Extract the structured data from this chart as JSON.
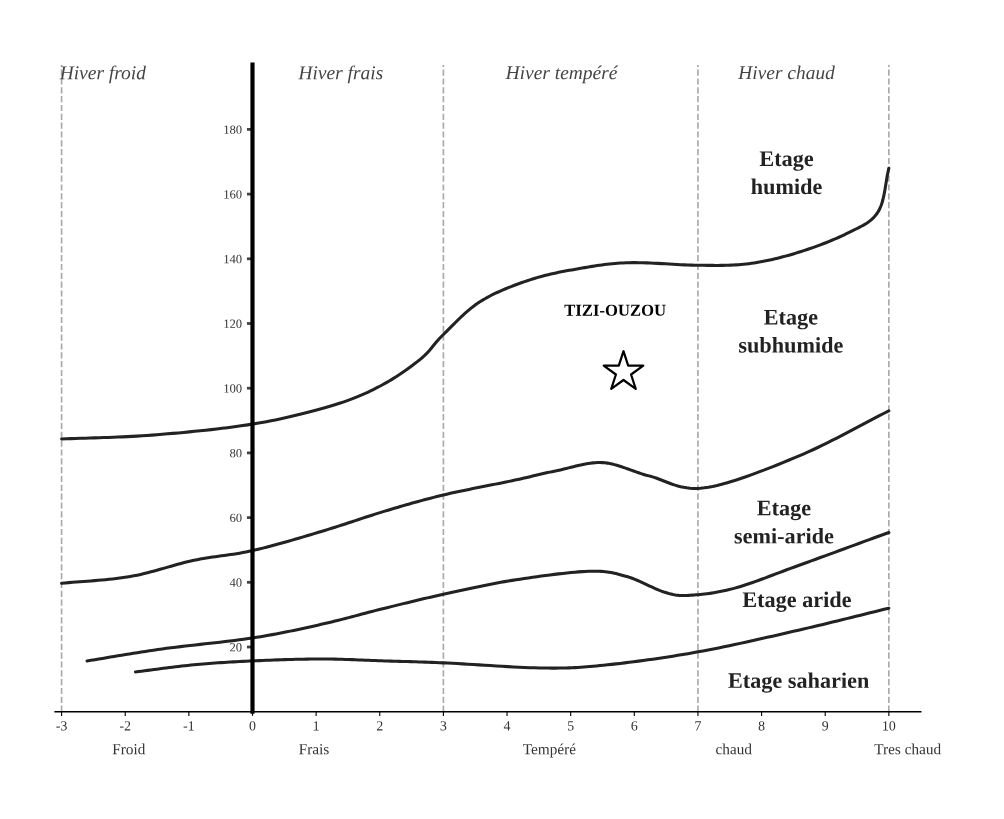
{
  "chart_data": {
    "type": "line",
    "xlim": [
      -3.1,
      10.5
    ],
    "ylim": [
      0,
      200
    ],
    "xticks": [
      -3,
      -2,
      -1,
      0,
      1,
      2,
      3,
      4,
      5,
      6,
      7,
      8,
      9,
      10
    ],
    "yticks": [
      20,
      40,
      60,
      80,
      100,
      120,
      140,
      160,
      180
    ],
    "grid": false,
    "legend": false,
    "line_style": "solid",
    "series": [
      {
        "color": "#222222",
        "x": [
          -3,
          -1.58,
          0,
          1.23,
          2.0,
          2.64,
          3,
          3.58,
          4.36,
          5.14,
          5.92,
          7,
          7.8,
          8.58,
          9.36,
          9.83,
          10
        ],
        "values": [
          84.3,
          85.5,
          88.9,
          94.5,
          100.6,
          109,
          116.6,
          126.8,
          133.5,
          137,
          138.8,
          138,
          138.5,
          142,
          148,
          154.5,
          168
        ]
      },
      {
        "color": "#222222",
        "x": [
          -3,
          -1.92,
          -0.92,
          0,
          1.08,
          2.08,
          3,
          4.08,
          4.78,
          5.5,
          6.23,
          7.1,
          8.58,
          10
        ],
        "values": [
          39.7,
          41.8,
          46.8,
          49.8,
          55.7,
          62,
          67,
          71.4,
          74.5,
          77,
          72.9,
          69.2,
          79,
          93
        ]
      },
      {
        "color": "#222222",
        "x": [
          -2.6,
          -1.42,
          0,
          1.08,
          2.08,
          3,
          4.08,
          5.28,
          5.88,
          6.48,
          6.88,
          7.58,
          8.58,
          10
        ],
        "values": [
          15.7,
          19.4,
          22.8,
          27,
          32,
          36.3,
          40.6,
          43.4,
          41.8,
          36.9,
          36,
          38.2,
          45.2,
          55.4
        ]
      },
      {
        "color": "#222222",
        "x": [
          -1.84,
          -0.92,
          0,
          1.08,
          2.08,
          3,
          4.58,
          5.58,
          7,
          8.58,
          10
        ],
        "values": [
          12.3,
          14.5,
          15.7,
          16.3,
          15.7,
          15.1,
          13.5,
          14.5,
          18.5,
          25.2,
          32
        ]
      },
      {
        "type": "scatter",
        "name": "TIZI-OUZOU",
        "color": "#000000",
        "marker": "star",
        "x": [
          5.83
        ],
        "values": [
          105
        ]
      }
    ],
    "ref_lines": [
      {
        "axis": "x",
        "value": -3,
        "color": "#aaaaaa",
        "line_style": "dashed"
      },
      {
        "axis": "x",
        "value": 3,
        "color": "#aaaaaa",
        "line_style": "dashed"
      },
      {
        "axis": "x",
        "value": 7,
        "color": "#aaaaaa",
        "line_style": "dashed"
      },
      {
        "axis": "x",
        "value": 10,
        "color": "#aaaaaa",
        "line_style": "dashed"
      }
    ],
    "annotations": [
      "Hiver froid",
      "Hiver frais",
      "Hiver tempéré",
      "Hiver chaud",
      "Etage\nhumide",
      "Etage\nsubhumide",
      "Etage\nsemi-aride",
      "Etage aride",
      "Etage saharien",
      "Froid",
      "Frais",
      "Tempéré",
      "chaud",
      "Tres chaud"
    ]
  }
}
